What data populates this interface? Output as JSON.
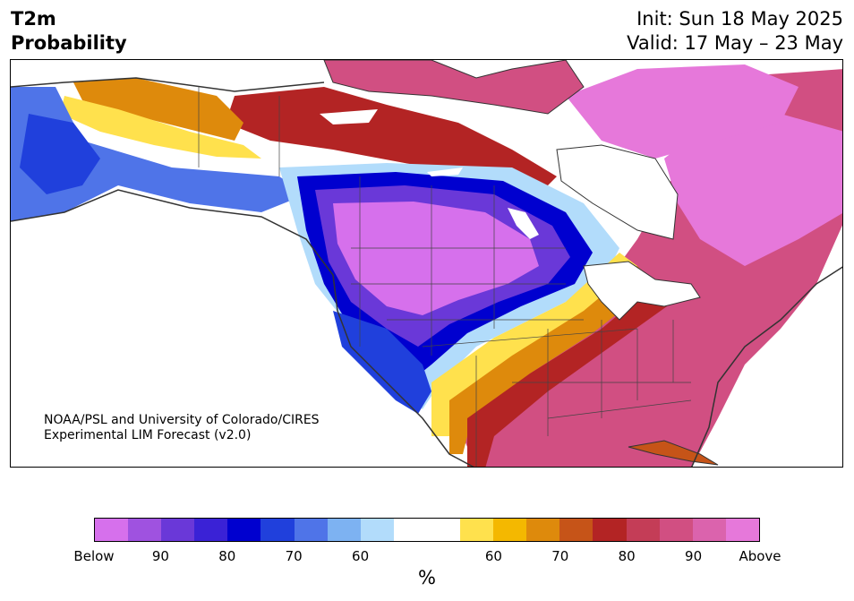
{
  "header": {
    "title_line1": "T2m",
    "title_line2": "Probability",
    "init": "Init: Sun 18 May 2025",
    "valid": "Valid: 17 May – 23 May"
  },
  "credit": {
    "line1": "NOAA/PSL and University of Colorado/CIRES",
    "line2": "Experimental LIM Forecast (v2.0)"
  },
  "legend": {
    "colors": [
      "#d670ec",
      "#9f52e0",
      "#6a38d8",
      "#3a22d6",
      "#0000cf",
      "#2040dc",
      "#4f74e8",
      "#7db2f2",
      "#b2dcfb",
      "#ffffff",
      "#ffffff",
      "#ffe14d",
      "#f4b800",
      "#de8a0c",
      "#c65418",
      "#b32424",
      "#c43d57",
      "#d14f82",
      "#db63ad",
      "#e678da"
    ],
    "labels": [
      "Below",
      "90",
      "80",
      "70",
      "60",
      "60",
      "70",
      "80",
      "90",
      "Above"
    ],
    "unit": "%"
  },
  "map_colors": {
    "below_deep": "#d670ec",
    "below_strong": "#2040dc",
    "below_light": "#b2dcfb",
    "above_light": "#ffe14d",
    "above_mid": "#de8a0c",
    "above_strong": "#b32424",
    "above_pink": "#d14f82",
    "above_deep": "#e678da"
  }
}
